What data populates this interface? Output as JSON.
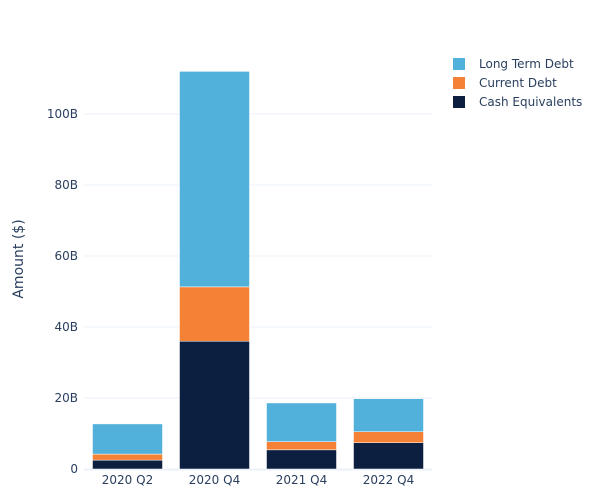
{
  "chart_data": {
    "type": "bar",
    "stacked": true,
    "categories": [
      "2020 Q2",
      "2020 Q4",
      "2021 Q4",
      "2022 Q4"
    ],
    "series": [
      {
        "name": "Cash Equivalents",
        "color": "#0d1f40",
        "values": [
          2.5,
          36.0,
          5.4,
          7.4
        ]
      },
      {
        "name": "Current Debt",
        "color": "#f58137",
        "values": [
          1.7,
          15.3,
          2.3,
          3.1
        ]
      },
      {
        "name": "Long Term Debt",
        "color": "#51b1da",
        "values": [
          8.5,
          60.7,
          10.9,
          9.3
        ]
      }
    ],
    "unit": "B",
    "ylabel": "Amount ($)",
    "yticks": [
      0,
      20,
      40,
      60,
      80,
      100
    ],
    "ytick_labels": [
      "0",
      "20B",
      "40B",
      "60B",
      "80B",
      "100B"
    ],
    "ylim": [
      0,
      117
    ],
    "grid": true,
    "legend_position": "top-right",
    "legend_order": [
      "Long Term Debt",
      "Current Debt",
      "Cash Equivalents"
    ]
  }
}
